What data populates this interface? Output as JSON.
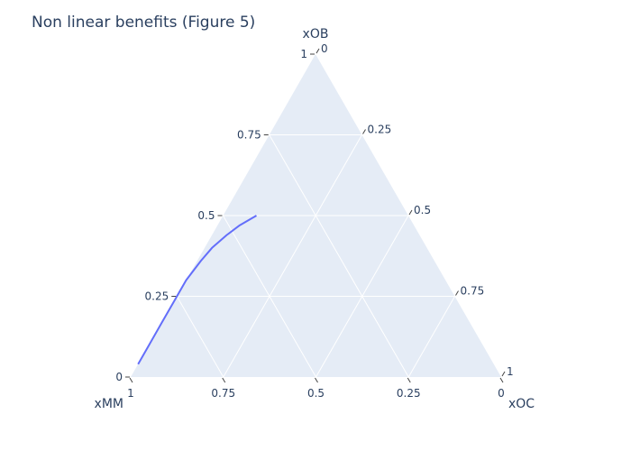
{
  "chart_data": {
    "type": "line",
    "subtype": "ternary",
    "title": "Non linear benefits (Figure 5)",
    "axes": {
      "a": {
        "label": "xOB",
        "ticks": [
          0,
          0.25,
          0.5,
          0.75,
          1
        ],
        "tick_labels": [
          "0",
          "0.25",
          "0.5",
          "0.75",
          "1"
        ]
      },
      "b": {
        "label": "xMM",
        "ticks": [
          0,
          0.25,
          0.5,
          0.75,
          1
        ],
        "tick_labels": [
          "0",
          "0.25",
          "0.5",
          "0.75",
          "1"
        ]
      },
      "c": {
        "label": "xOC",
        "ticks": [
          0,
          0.25,
          0.5,
          0.75,
          1
        ],
        "tick_labels": [
          "0",
          "0.25",
          "0.5",
          "0.75",
          "1"
        ]
      }
    },
    "series": [
      {
        "color": "#636efa",
        "points": [
          {
            "a": 0.04,
            "b": 0.96,
            "c": 0.0
          },
          {
            "a": 0.1,
            "b": 0.9,
            "c": 0.0
          },
          {
            "a": 0.17,
            "b": 0.83,
            "c": 0.0
          },
          {
            "a": 0.24,
            "b": 0.76,
            "c": 0.0
          },
          {
            "a": 0.3,
            "b": 0.7,
            "c": 0.0
          },
          {
            "a": 0.36,
            "b": 0.63,
            "c": 0.01
          },
          {
            "a": 0.4,
            "b": 0.58,
            "c": 0.02
          },
          {
            "a": 0.44,
            "b": 0.52,
            "c": 0.04
          },
          {
            "a": 0.47,
            "b": 0.47,
            "c": 0.06
          },
          {
            "a": 0.5,
            "b": 0.41,
            "c": 0.09
          }
        ]
      }
    ],
    "background_color": "#e5ecf6",
    "grid": true
  }
}
